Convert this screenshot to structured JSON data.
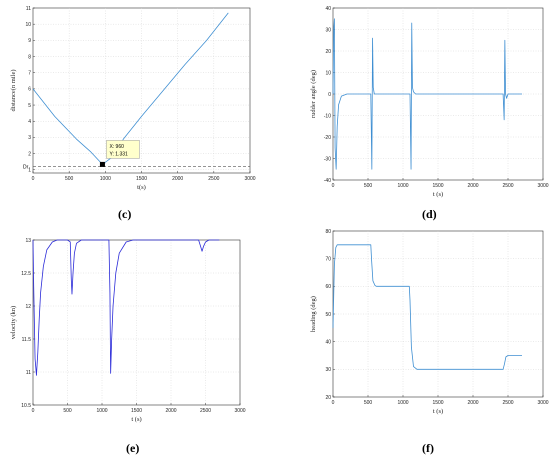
{
  "colors": {
    "line_light": "#3f8fd2",
    "line_dark": "#2b2bd8",
    "ref_line": "#555555",
    "tip_bg": "#ffffcc"
  },
  "chart_data": [
    {
      "panel": "(c)",
      "type": "line",
      "xlabel": "t(s)",
      "ylabel": "distance(n mile)",
      "xlim": [
        0,
        3000
      ],
      "ylim": [
        0.8,
        11
      ],
      "xticks": [
        0,
        500,
        1000,
        1500,
        2000,
        2500,
        3000
      ],
      "yticks": [
        1,
        2,
        3,
        4,
        5,
        6,
        7,
        8,
        9,
        10,
        11
      ],
      "grid": true,
      "color": "#3f8fd2",
      "x": [
        0,
        300,
        600,
        800,
        960,
        1100,
        1250,
        1500,
        1800,
        2100,
        2400,
        2700
      ],
      "y": [
        6.0,
        4.3,
        2.9,
        2.1,
        1.331,
        1.8,
        2.9,
        4.3,
        5.9,
        7.5,
        9.0,
        10.7
      ],
      "reference": {
        "y": 1.2,
        "label": "Dr"
      },
      "datatip": {
        "x": 960,
        "y": 1.331,
        "text_x": "X: 960",
        "text_y": "Y: 1.331"
      }
    },
    {
      "panel": "(d)",
      "type": "line",
      "xlabel": "t (s)",
      "ylabel": "rudder angle (deg)",
      "xlim": [
        0,
        3000
      ],
      "ylim": [
        -40,
        40
      ],
      "xticks": [
        0,
        500,
        1000,
        1500,
        2000,
        2500,
        3000
      ],
      "yticks": [
        -40,
        -30,
        -20,
        -10,
        0,
        10,
        20,
        30,
        40
      ],
      "grid": true,
      "color": "#3f8fd2",
      "x": [
        0,
        10,
        20,
        30,
        45,
        60,
        80,
        120,
        200,
        540,
        555,
        565,
        575,
        590,
        610,
        1100,
        1115,
        1125,
        1135,
        1150,
        1180,
        1250,
        2430,
        2445,
        2455,
        2465,
        2480,
        2500,
        2550,
        2700
      ],
      "y": [
        0,
        30,
        35,
        -25,
        -35,
        -15,
        -5,
        -1,
        0,
        0,
        -35,
        26,
        3,
        0,
        0,
        0,
        -35,
        33,
        3,
        1,
        0,
        0,
        0,
        -12,
        25,
        0,
        -2,
        0,
        0,
        0
      ]
    },
    {
      "panel": "(e)",
      "type": "line",
      "xlabel": "t (s)",
      "ylabel": "velocity (kn)",
      "xlim": [
        0,
        3000
      ],
      "ylim": [
        10.5,
        13
      ],
      "xticks": [
        0,
        500,
        1000,
        1500,
        2000,
        2500,
        3000
      ],
      "yticks": [
        10.5,
        11,
        11.5,
        12,
        12.5,
        13
      ],
      "grid": true,
      "color": "#2b2bd8",
      "x": [
        0,
        10,
        30,
        50,
        70,
        90,
        110,
        150,
        200,
        280,
        350,
        500,
        540,
        555,
        565,
        580,
        600,
        630,
        700,
        1100,
        1115,
        1125,
        1140,
        1160,
        1200,
        1250,
        1350,
        1450,
        2400,
        2430,
        2450,
        2470,
        2500,
        2550,
        2700
      ],
      "y": [
        13,
        12.3,
        11.2,
        10.95,
        11.3,
        11.8,
        12.2,
        12.6,
        12.85,
        12.97,
        13,
        13,
        12.97,
        12.4,
        12.18,
        12.5,
        12.8,
        12.95,
        13,
        13,
        12.2,
        10.98,
        11.5,
        12.0,
        12.5,
        12.8,
        12.97,
        13,
        13,
        12.9,
        12.83,
        12.9,
        12.97,
        13,
        13
      ]
    },
    {
      "panel": "(f)",
      "type": "line",
      "xlabel": "t (s)",
      "ylabel": "heading (deg)",
      "xlim": [
        0,
        3000
      ],
      "ylim": [
        20,
        80
      ],
      "xticks": [
        0,
        500,
        1000,
        1500,
        2000,
        2500,
        3000
      ],
      "yticks": [
        20,
        30,
        40,
        50,
        60,
        70,
        80
      ],
      "grid": true,
      "color": "#3f8fd2",
      "x": [
        0,
        20,
        40,
        60,
        100,
        540,
        550,
        570,
        600,
        620,
        1090,
        1100,
        1120,
        1150,
        1200,
        2430,
        2450,
        2470,
        2500,
        2700
      ],
      "y": [
        45,
        68,
        74,
        75,
        75,
        75,
        70,
        62,
        60.3,
        60,
        60,
        55,
        38,
        31,
        30,
        30,
        32,
        34.5,
        35,
        35
      ]
    }
  ],
  "panel_labels": {
    "c": "(c)",
    "d": "(d)",
    "e": "(e)",
    "f": "(f)"
  }
}
